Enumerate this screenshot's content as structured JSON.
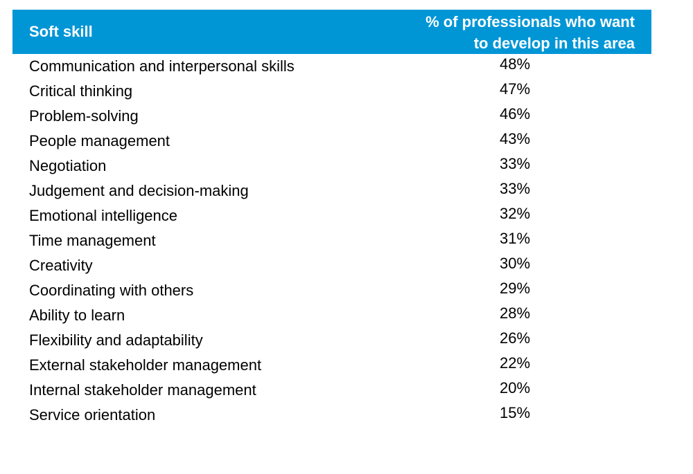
{
  "colors": {
    "header_background": "#0096d6",
    "header_text": "#ffffff",
    "body_text": "#000000"
  },
  "chart_data": {
    "type": "table",
    "columns": [
      "Soft skill",
      "% of professionals who want to develop in this area"
    ],
    "header": {
      "skill_label": "Soft skill",
      "pct_label_line1": "% of professionals who want",
      "pct_label_line2": "to develop in this area"
    },
    "rows": [
      {
        "skill": "Communication and interpersonal skills",
        "value": "48%"
      },
      {
        "skill": "Critical thinking",
        "value": "47%"
      },
      {
        "skill": "Problem-solving",
        "value": "46%"
      },
      {
        "skill": "People management",
        "value": "43%"
      },
      {
        "skill": "Negotiation",
        "value": "33%"
      },
      {
        "skill": "Judgement and decision-making",
        "value": "33%"
      },
      {
        "skill": "Emotional intelligence",
        "value": "32%"
      },
      {
        "skill": "Time management",
        "value": "31%"
      },
      {
        "skill": "Creativity",
        "value": "30%"
      },
      {
        "skill": "Coordinating with others",
        "value": "29%"
      },
      {
        "skill": "Ability to learn",
        "value": "28%"
      },
      {
        "skill": "Flexibility and adaptability",
        "value": "26%"
      },
      {
        "skill": "External stakeholder management",
        "value": "22%"
      },
      {
        "skill": "Internal stakeholder management",
        "value": "20%"
      },
      {
        "skill": "Service orientation",
        "value": "15%"
      }
    ]
  }
}
